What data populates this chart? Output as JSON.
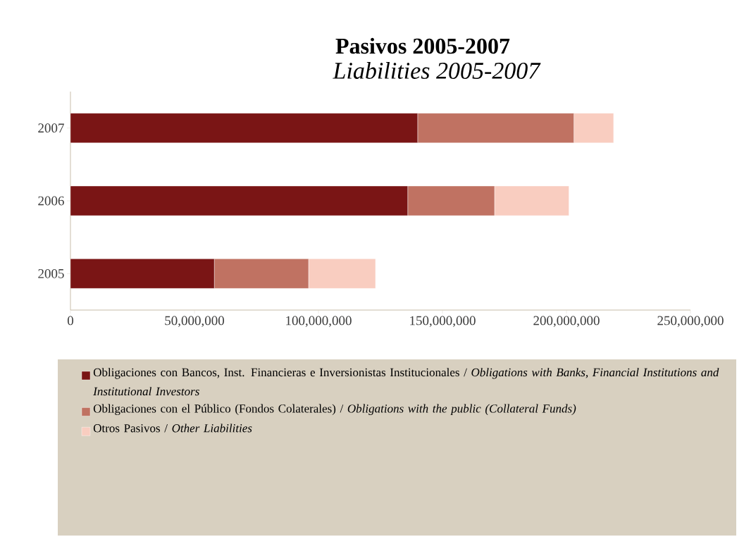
{
  "chart_data": {
    "type": "bar",
    "orientation": "horizontal",
    "stacked": true,
    "title": "**Pasivos 2005-2007**",
    "subtitle": "*Liabilities 2005-2007*",
    "categories": [
      "2007",
      "2006",
      "2005"
    ],
    "series": [
      {
        "name": "Obligaciones con Bancos, Inst. Financieras  e Inversionistas Institucionales / *Obligations with Banks, Financial Institutions and Institutional Investors*",
        "color": "#7a1515",
        "values": [
          140000000,
          136000000,
          58000000
        ]
      },
      {
        "name": "Obligaciones con el Público (Fondos Colaterales) / *Obligations with the public (Collateral Funds)*",
        "color": "#c07262",
        "values": [
          63000000,
          35000000,
          38000000
        ]
      },
      {
        "name": "Otros Pasivos / *Other Liabilities*",
        "color": "#f9cdc0",
        "values": [
          16000000,
          30000000,
          27000000
        ]
      }
    ],
    "xlim": [
      0,
      250000000
    ],
    "xticks": [
      0,
      {
        "value": 50000000,
        "label": "50,000,000"
      },
      {
        "value": 100000000,
        "label": "100,000,000"
      },
      {
        "value": 150000000,
        "label": "150,000,000"
      },
      {
        "value": 200000000,
        "label": "200,000,000"
      },
      {
        "value": 250000000,
        "label": "250,000,000"
      }
    ],
    "legend": "bottom"
  }
}
